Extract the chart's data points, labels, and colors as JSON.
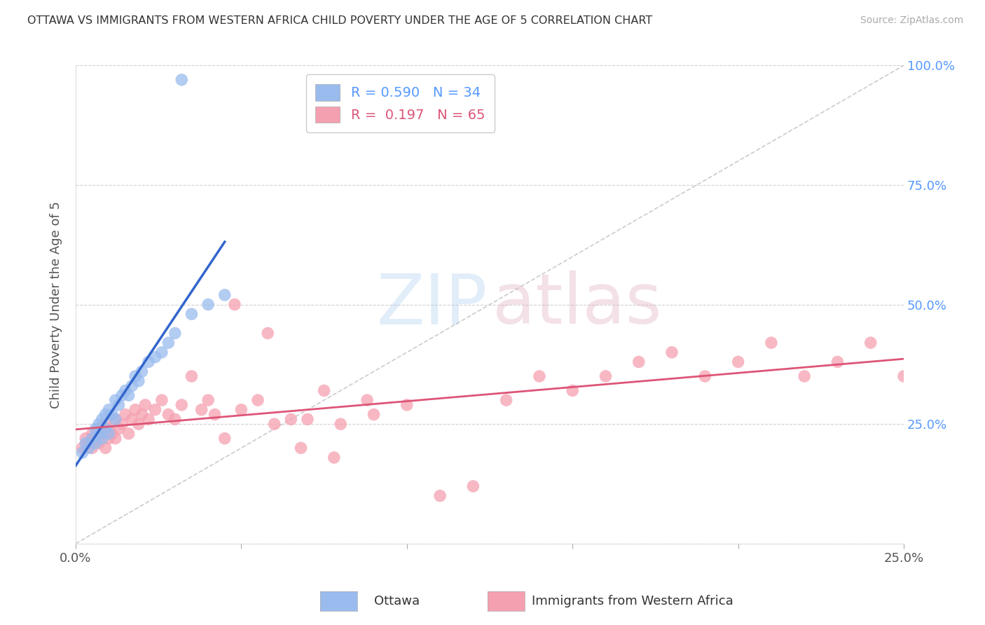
{
  "title": "OTTAWA VS IMMIGRANTS FROM WESTERN AFRICA CHILD POVERTY UNDER THE AGE OF 5 CORRELATION CHART",
  "source": "Source: ZipAtlas.com",
  "ylabel": "Child Poverty Under the Age of 5",
  "xlim": [
    0.0,
    0.25
  ],
  "ylim": [
    0.0,
    1.0
  ],
  "xtick_vals": [
    0.0,
    0.05,
    0.1,
    0.15,
    0.2,
    0.25
  ],
  "xtick_labels": [
    "0.0%",
    "",
    "",
    "",
    "",
    "25.0%"
  ],
  "ytick_vals": [
    0.0,
    0.25,
    0.5,
    0.75,
    1.0
  ],
  "ytick_labels_right": [
    "",
    "25.0%",
    "50.0%",
    "75.0%",
    "100.0%"
  ],
  "grid_color": "#d0d0d0",
  "background_color": "#ffffff",
  "title_color": "#333333",
  "right_axis_color": "#5599ff",
  "ottawa_color": "#99bbee",
  "immigrant_color": "#f5a0b0",
  "ottawa_line_color": "#3366cc",
  "immigrant_line_color": "#dd5577",
  "diag_color": "#cccccc",
  "ottawa_R": 0.59,
  "ottawa_N": 34,
  "immigrant_R": 0.197,
  "immigrant_N": 65,
  "ottawa_x": [
    0.002,
    0.003,
    0.004,
    0.005,
    0.006,
    0.006,
    0.007,
    0.007,
    0.008,
    0.008,
    0.009,
    0.009,
    0.01,
    0.01,
    0.011,
    0.012,
    0.012,
    0.013,
    0.014,
    0.015,
    0.016,
    0.017,
    0.018,
    0.019,
    0.02,
    0.022,
    0.024,
    0.026,
    0.028,
    0.03,
    0.035,
    0.04,
    0.045,
    0.032
  ],
  "ottawa_y": [
    0.19,
    0.21,
    0.2,
    0.22,
    0.21,
    0.24,
    0.23,
    0.25,
    0.22,
    0.26,
    0.24,
    0.27,
    0.23,
    0.28,
    0.27,
    0.26,
    0.3,
    0.29,
    0.31,
    0.32,
    0.31,
    0.33,
    0.35,
    0.34,
    0.36,
    0.38,
    0.39,
    0.4,
    0.42,
    0.44,
    0.48,
    0.5,
    0.52,
    0.97
  ],
  "immigrant_x": [
    0.002,
    0.003,
    0.004,
    0.005,
    0.005,
    0.006,
    0.007,
    0.007,
    0.008,
    0.009,
    0.009,
    0.01,
    0.01,
    0.011,
    0.012,
    0.012,
    0.013,
    0.014,
    0.015,
    0.016,
    0.017,
    0.018,
    0.019,
    0.02,
    0.021,
    0.022,
    0.024,
    0.026,
    0.028,
    0.03,
    0.032,
    0.035,
    0.038,
    0.04,
    0.042,
    0.045,
    0.05,
    0.055,
    0.06,
    0.065,
    0.07,
    0.075,
    0.08,
    0.09,
    0.1,
    0.11,
    0.12,
    0.13,
    0.14,
    0.15,
    0.16,
    0.17,
    0.18,
    0.19,
    0.2,
    0.21,
    0.22,
    0.23,
    0.24,
    0.25,
    0.048,
    0.058,
    0.068,
    0.078,
    0.088
  ],
  "immigrant_y": [
    0.2,
    0.22,
    0.21,
    0.23,
    0.2,
    0.22,
    0.24,
    0.21,
    0.23,
    0.2,
    0.25,
    0.22,
    0.24,
    0.23,
    0.26,
    0.22,
    0.24,
    0.25,
    0.27,
    0.23,
    0.26,
    0.28,
    0.25,
    0.27,
    0.29,
    0.26,
    0.28,
    0.3,
    0.27,
    0.26,
    0.29,
    0.35,
    0.28,
    0.3,
    0.27,
    0.22,
    0.28,
    0.3,
    0.25,
    0.26,
    0.26,
    0.32,
    0.25,
    0.27,
    0.29,
    0.1,
    0.12,
    0.3,
    0.35,
    0.32,
    0.35,
    0.38,
    0.4,
    0.35,
    0.38,
    0.42,
    0.35,
    0.38,
    0.42,
    0.35,
    0.5,
    0.44,
    0.2,
    0.18,
    0.3
  ]
}
